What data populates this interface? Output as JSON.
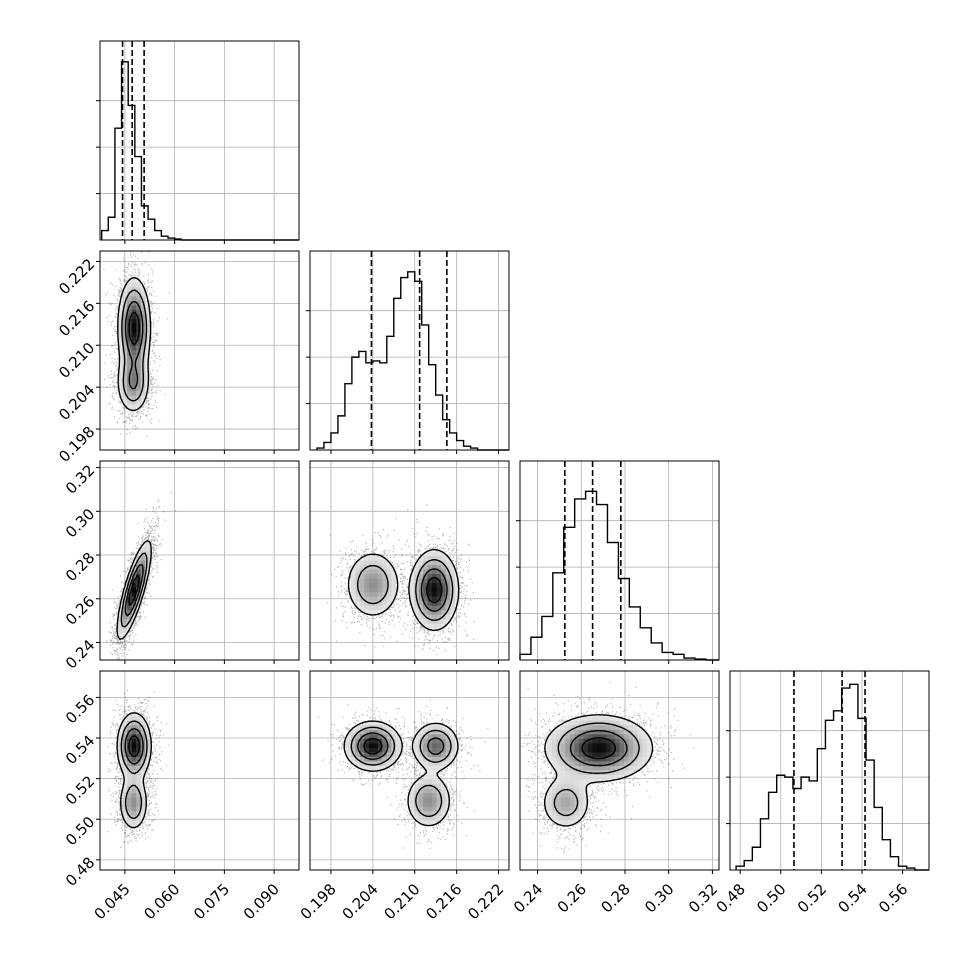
{
  "chart_data": {
    "type": "corner",
    "colors": {
      "hist": "#000000",
      "grid": "#b0b0b0",
      "density_dark": "#000000",
      "density_light": "#f0f0f0"
    },
    "params": [
      {
        "ticks": [
          0.045,
          0.06,
          0.075,
          0.09
        ],
        "tick_labels": [
          "0.045",
          "0.060",
          "0.075",
          "0.090"
        ],
        "range": [
          0.0375,
          0.0975
        ]
      },
      {
        "ticks": [
          0.198,
          0.204,
          0.21,
          0.216,
          0.222
        ],
        "tick_labels": [
          "0.198",
          "0.204",
          "0.210",
          "0.216",
          "0.222"
        ],
        "range": [
          0.195,
          0.2235
        ]
      },
      {
        "ticks": [
          0.24,
          0.26,
          0.28,
          0.3,
          0.32
        ],
        "tick_labels": [
          "0.24",
          "0.26",
          "0.28",
          "0.30",
          "0.32"
        ],
        "range": [
          0.232,
          0.323
        ]
      },
      {
        "ticks": [
          0.48,
          0.5,
          0.52,
          0.54,
          0.56
        ],
        "tick_labels": [
          "0.48",
          "0.50",
          "0.52",
          "0.54",
          "0.56"
        ],
        "range": [
          0.475,
          0.573
        ]
      }
    ],
    "histograms": [
      {
        "param": 0,
        "bins": [
          0.038,
          0.04,
          0.042,
          0.044,
          0.046,
          0.048,
          0.05,
          0.052,
          0.054,
          0.056,
          0.058,
          0.06,
          0.062,
          0.064,
          0.066,
          0.068
        ],
        "counts": [
          0.05,
          0.12,
          0.59,
          0.94,
          0.71,
          0.44,
          0.18,
          0.11,
          0.05,
          0.02,
          0.01,
          0.005,
          0.0,
          0.0,
          0.0
        ],
        "quantiles": [
          0.0443,
          0.0472,
          0.0508
        ]
      },
      {
        "param": 1,
        "bins": [
          0.196,
          0.197,
          0.198,
          0.199,
          0.2,
          0.201,
          0.202,
          0.203,
          0.204,
          0.205,
          0.206,
          0.207,
          0.208,
          0.209,
          0.21,
          0.211,
          0.212,
          0.213,
          0.214,
          0.215,
          0.216,
          0.217,
          0.218,
          0.219,
          0.22,
          0.221
        ],
        "counts": [
          0.01,
          0.04,
          0.09,
          0.18,
          0.35,
          0.49,
          0.52,
          0.46,
          0.47,
          0.46,
          0.6,
          0.8,
          0.91,
          0.94,
          0.89,
          0.66,
          0.45,
          0.29,
          0.16,
          0.09,
          0.05,
          0.02,
          0.01,
          0.0,
          0.0
        ],
        "quantiles": [
          0.2038,
          0.2107,
          0.2146
        ]
      },
      {
        "param": 2,
        "bins": [
          0.232,
          0.237,
          0.242,
          0.247,
          0.252,
          0.257,
          0.262,
          0.267,
          0.272,
          0.277,
          0.282,
          0.287,
          0.292,
          0.297,
          0.302,
          0.307,
          0.312,
          0.317,
          0.322
        ],
        "counts": [
          0.03,
          0.12,
          0.23,
          0.46,
          0.7,
          0.85,
          0.89,
          0.82,
          0.62,
          0.43,
          0.28,
          0.17,
          0.09,
          0.04,
          0.03,
          0.01,
          0.005,
          0.0
        ],
        "quantiles": [
          0.2525,
          0.2652,
          0.2781
        ]
      },
      {
        "param": 3,
        "bins": [
          0.478,
          0.482,
          0.486,
          0.49,
          0.494,
          0.498,
          0.502,
          0.506,
          0.51,
          0.514,
          0.518,
          0.522,
          0.526,
          0.53,
          0.534,
          0.538,
          0.542,
          0.546,
          0.55,
          0.554,
          0.558,
          0.562,
          0.566,
          0.57
        ],
        "counts": [
          0.02,
          0.05,
          0.12,
          0.27,
          0.41,
          0.5,
          0.49,
          0.43,
          0.49,
          0.47,
          0.64,
          0.79,
          0.84,
          0.96,
          0.98,
          0.8,
          0.58,
          0.33,
          0.16,
          0.07,
          0.02,
          0.01,
          0.0
        ],
        "quantiles": [
          0.5065,
          0.5302,
          0.5415
        ]
      }
    ],
    "hist_y_ticks": [
      0.25,
      0.5,
      0.75
    ],
    "pairs": [
      {
        "x": 0,
        "y": 1,
        "modes": [
          {
            "cx": 0.0478,
            "cy": 0.2125,
            "sx": 0.0024,
            "sy": 0.0035,
            "w": 1.0
          },
          {
            "cx": 0.0475,
            "cy": 0.2045,
            "sx": 0.0025,
            "sy": 0.0022,
            "w": 0.55
          }
        ]
      },
      {
        "x": 0,
        "y": 2,
        "modes": [
          {
            "cx": 0.0478,
            "cy": 0.264,
            "sx": 0.0025,
            "sy": 0.011,
            "rho": 0.8,
            "w": 1.0
          }
        ]
      },
      {
        "x": 1,
        "y": 2,
        "modes": [
          {
            "cx": 0.204,
            "cy": 0.2665,
            "sx": 0.002,
            "sy": 0.008,
            "w": 0.55
          },
          {
            "cx": 0.2128,
            "cy": 0.264,
            "sx": 0.0017,
            "sy": 0.009,
            "w": 1.0
          }
        ]
      },
      {
        "x": 0,
        "y": 3,
        "modes": [
          {
            "cx": 0.0478,
            "cy": 0.536,
            "sx": 0.0025,
            "sy": 0.008,
            "w": 1.0
          },
          {
            "cx": 0.0476,
            "cy": 0.508,
            "sx": 0.0022,
            "sy": 0.007,
            "w": 0.55
          }
        ]
      },
      {
        "x": 1,
        "y": 3,
        "modes": [
          {
            "cx": 0.204,
            "cy": 0.536,
            "sx": 0.002,
            "sy": 0.006,
            "w": 1.0
          },
          {
            "cx": 0.213,
            "cy": 0.536,
            "sx": 0.0017,
            "sy": 0.006,
            "w": 0.7
          },
          {
            "cx": 0.212,
            "cy": 0.509,
            "sx": 0.0017,
            "sy": 0.007,
            "w": 0.55
          }
        ]
      },
      {
        "x": 2,
        "y": 3,
        "modes": [
          {
            "cx": 0.268,
            "cy": 0.535,
            "sx": 0.012,
            "sy": 0.008,
            "w": 1.0
          },
          {
            "cx": 0.253,
            "cy": 0.508,
            "sx": 0.006,
            "sy": 0.007,
            "w": 0.45
          }
        ]
      }
    ],
    "grid": true
  }
}
